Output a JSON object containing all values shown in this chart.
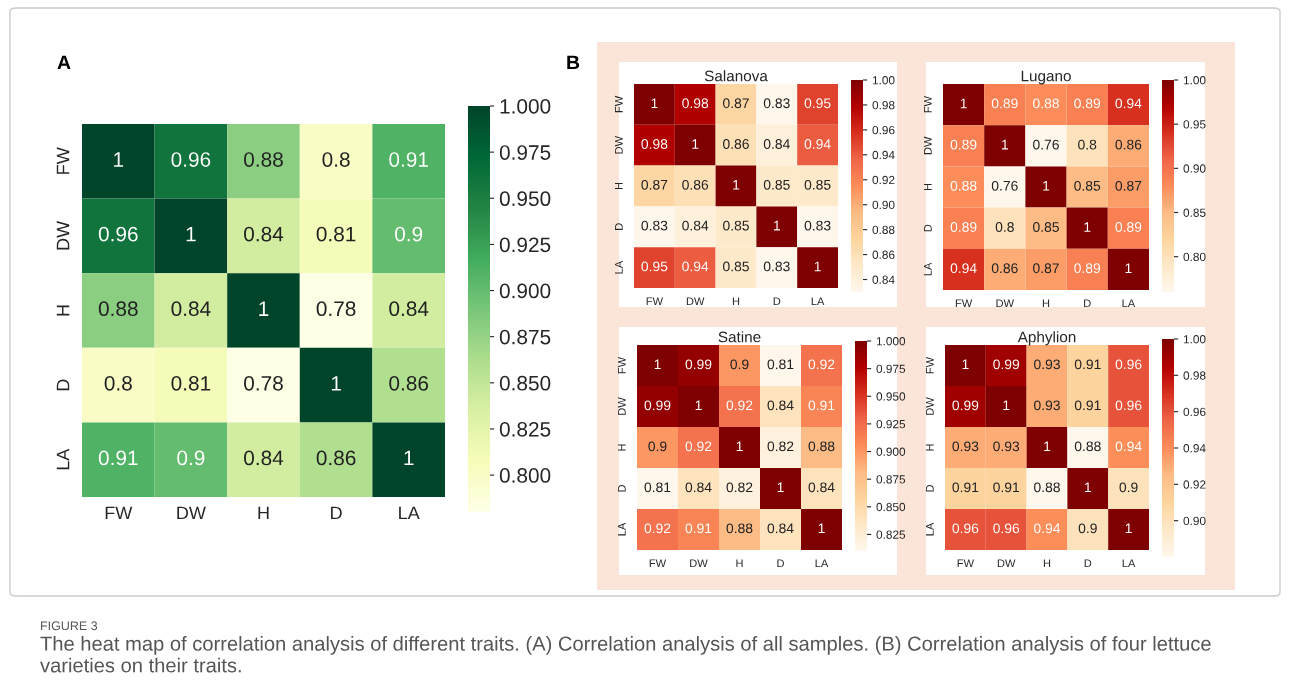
{
  "chart_data": [
    {
      "type": "heatmap",
      "categories": [
        "FW",
        "DW",
        "H",
        "D",
        "LA"
      ],
      "y_categories": [
        "FW",
        "DW",
        "H",
        "D",
        "LA"
      ],
      "cells": [
        [
          1,
          0.96,
          0.88,
          0.8,
          0.91
        ],
        [
          0.96,
          1,
          0.84,
          0.81,
          0.9
        ],
        [
          0.88,
          0.84,
          1,
          0.78,
          0.84
        ],
        [
          0.8,
          0.81,
          0.78,
          1,
          0.86
        ],
        [
          0.91,
          0.9,
          0.84,
          0.86,
          1
        ]
      ],
      "clim": [
        0.78,
        1.0
      ],
      "cticks": [
        {
          "value": 0.8,
          "label": "0.800"
        },
        {
          "value": 0.825,
          "label": "0.825"
        },
        {
          "value": 0.85,
          "label": "0.850"
        },
        {
          "value": 0.875,
          "label": "0.875"
        },
        {
          "value": 0.9,
          "label": "0.900"
        },
        {
          "value": 0.925,
          "label": "0.925"
        },
        {
          "value": 0.95,
          "label": "0.950"
        },
        {
          "value": 0.975,
          "label": "0.975"
        },
        {
          "value": 1.0,
          "label": "1.000"
        }
      ],
      "data_labels": true,
      "annotations": [
        "A",
        "FIGURE 3",
        "The heat map of correlation analysis of different traits. (A) Correlation analysis of all samples. (B) Correlation analysis of four lettuce varieties on their traits."
      ]
    },
    {
      "type": "heatmap",
      "title": "Salanova",
      "categories": [
        "FW",
        "DW",
        "H",
        "D",
        "LA"
      ],
      "y_categories": [
        "FW",
        "DW",
        "H",
        "D",
        "LA"
      ],
      "cells": [
        [
          1,
          0.98,
          0.87,
          0.83,
          0.95
        ],
        [
          0.98,
          1,
          0.86,
          0.84,
          0.94
        ],
        [
          0.87,
          0.86,
          1,
          0.85,
          0.85
        ],
        [
          0.83,
          0.84,
          0.85,
          1,
          0.83
        ],
        [
          0.95,
          0.94,
          0.85,
          0.83,
          1
        ]
      ],
      "clim": [
        0.83,
        1.0
      ],
      "cticks": [
        {
          "value": 0.84,
          "label": "0.84"
        },
        {
          "value": 0.86,
          "label": "0.86"
        },
        {
          "value": 0.88,
          "label": "0.88"
        },
        {
          "value": 0.9,
          "label": "0.90"
        },
        {
          "value": 0.92,
          "label": "0.92"
        },
        {
          "value": 0.94,
          "label": "0.94"
        },
        {
          "value": 0.96,
          "label": "0.96"
        },
        {
          "value": 0.98,
          "label": "0.98"
        },
        {
          "value": 1.0,
          "label": "1.00"
        }
      ],
      "data_labels": true,
      "annotations": [
        "B"
      ]
    },
    {
      "type": "heatmap",
      "title": "Lugano",
      "categories": [
        "FW",
        "DW",
        "H",
        "D",
        "LA"
      ],
      "y_categories": [
        "FW",
        "DW",
        "H",
        "D",
        "LA"
      ],
      "cells": [
        [
          1,
          0.89,
          0.88,
          0.89,
          0.94
        ],
        [
          0.89,
          1,
          0.76,
          0.8,
          0.86
        ],
        [
          0.88,
          0.76,
          1,
          0.85,
          0.87
        ],
        [
          0.89,
          0.8,
          0.85,
          1,
          0.89
        ],
        [
          0.94,
          0.86,
          0.87,
          0.89,
          1
        ]
      ],
      "clim": [
        0.76,
        1.0
      ],
      "cticks": [
        {
          "value": 0.8,
          "label": "0.80"
        },
        {
          "value": 0.85,
          "label": "0.85"
        },
        {
          "value": 0.9,
          "label": "0.90"
        },
        {
          "value": 0.95,
          "label": "0.95"
        },
        {
          "value": 1.0,
          "label": "1.00"
        }
      ],
      "data_labels": true
    },
    {
      "type": "heatmap",
      "title": "Satine",
      "categories": [
        "FW",
        "DW",
        "H",
        "D",
        "LA"
      ],
      "y_categories": [
        "FW",
        "DW",
        "H",
        "D",
        "LA"
      ],
      "cells": [
        [
          1,
          0.99,
          0.9,
          0.81,
          0.92
        ],
        [
          0.99,
          1,
          0.92,
          0.84,
          0.91
        ],
        [
          0.9,
          0.92,
          1,
          0.82,
          0.88
        ],
        [
          0.81,
          0.84,
          0.82,
          1,
          0.84
        ],
        [
          0.92,
          0.91,
          0.88,
          0.84,
          1
        ]
      ],
      "clim": [
        0.81,
        1.0
      ],
      "cticks": [
        {
          "value": 0.825,
          "label": "0.825"
        },
        {
          "value": 0.85,
          "label": "0.850"
        },
        {
          "value": 0.875,
          "label": "0.875"
        },
        {
          "value": 0.9,
          "label": "0.900"
        },
        {
          "value": 0.925,
          "label": "0.925"
        },
        {
          "value": 0.95,
          "label": "0.950"
        },
        {
          "value": 0.975,
          "label": "0.975"
        },
        {
          "value": 1.0,
          "label": "1.000"
        }
      ],
      "data_labels": true
    },
    {
      "type": "heatmap",
      "title": "Aphylion",
      "categories": [
        "FW",
        "DW",
        "H",
        "D",
        "LA"
      ],
      "y_categories": [
        "FW",
        "DW",
        "H",
        "D",
        "LA"
      ],
      "cells": [
        [
          1,
          0.99,
          0.93,
          0.91,
          0.96
        ],
        [
          0.99,
          1,
          0.93,
          0.91,
          0.96
        ],
        [
          0.93,
          0.93,
          1,
          0.88,
          0.94
        ],
        [
          0.91,
          0.91,
          0.88,
          1,
          0.9
        ],
        [
          0.96,
          0.96,
          0.94,
          0.9,
          1
        ]
      ],
      "clim": [
        0.88,
        1.0
      ],
      "cticks": [
        {
          "value": 0.9,
          "label": "0.90"
        },
        {
          "value": 0.92,
          "label": "0.92"
        },
        {
          "value": 0.94,
          "label": "0.94"
        },
        {
          "value": 0.96,
          "label": "0.96"
        },
        {
          "value": 0.98,
          "label": "0.98"
        },
        {
          "value": 1.0,
          "label": "1.00"
        }
      ],
      "data_labels": true
    }
  ]
}
